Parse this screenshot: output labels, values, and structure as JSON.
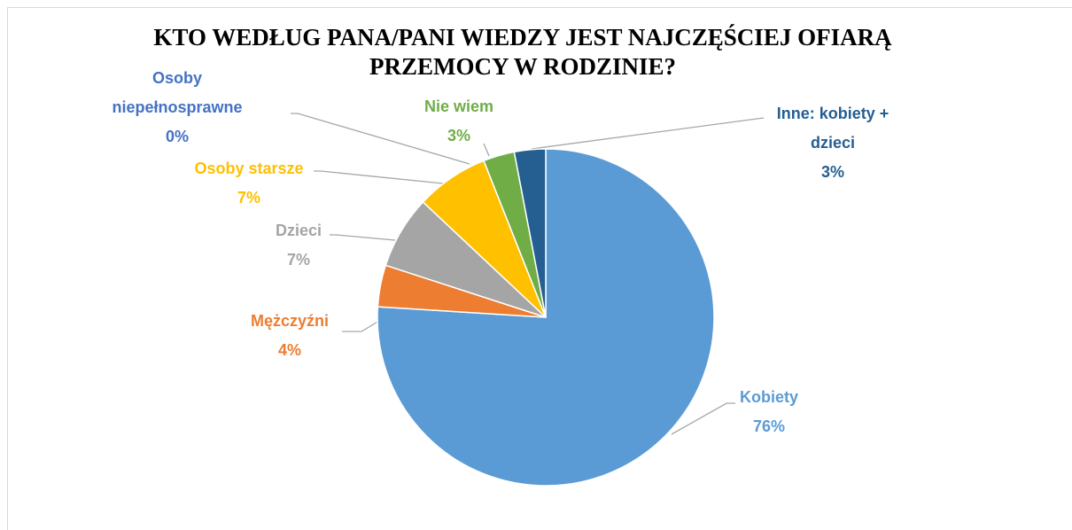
{
  "chart_data": {
    "type": "pie",
    "title": "KTO WEDŁUG PANA/PANI WIEDZY JEST NAJCZĘŚCIEJ OFIARĄ PRZEMOCY W RODZINIE?",
    "categories": [
      "Kobiety",
      "Mężczyźni",
      "Dzieci",
      "Osoby starsze",
      "Osoby niepełnosprawne",
      "Nie wiem",
      "Inne: kobiety + dzieci"
    ],
    "values": [
      76,
      4,
      7,
      7,
      0,
      3,
      3
    ],
    "value_labels": [
      "76%",
      "4%",
      "7%",
      "7%",
      "0%",
      "3%",
      "3%"
    ],
    "colors": [
      "#5b9bd5",
      "#ed7d31",
      "#a5a5a5",
      "#ffc000",
      "#4472c4",
      "#70ad47",
      "#255e91"
    ]
  }
}
